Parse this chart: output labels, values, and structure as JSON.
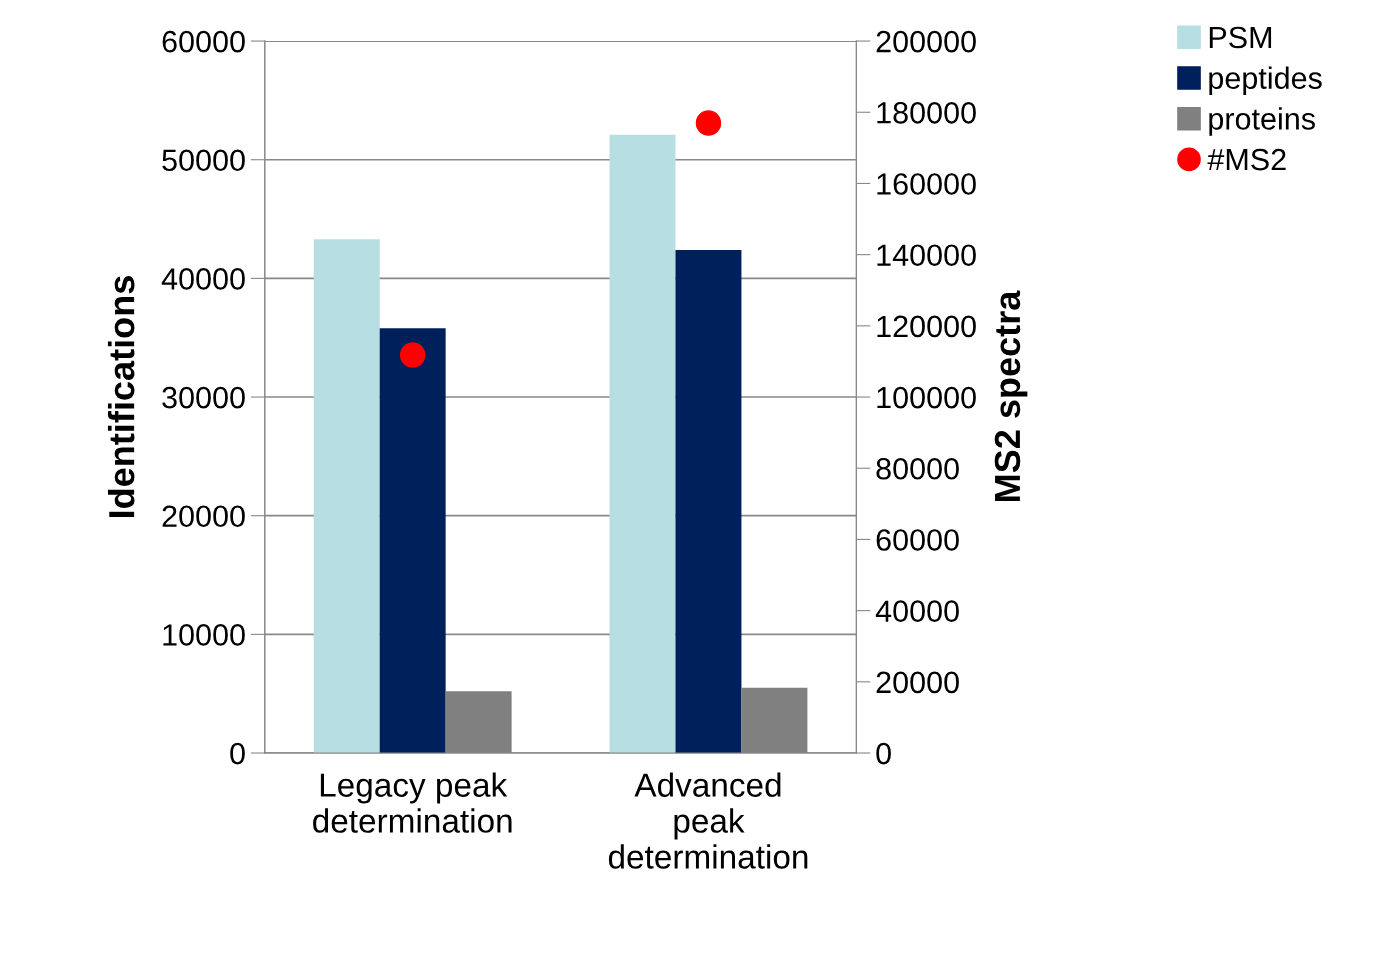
{
  "chart_data": {
    "type": "bar",
    "ylabel": "Identifications",
    "y2label": "MS2 spectra",
    "categories": [
      "Legacy peak\ndetermination",
      "Advanced\npeak\ndetermination"
    ],
    "series": [
      {
        "name": "PSM",
        "color": "#b7dfe3",
        "values": [
          43300,
          52100
        ]
      },
      {
        "name": "peptides",
        "color": "#00205b",
        "values": [
          35800,
          42400
        ]
      },
      {
        "name": "proteins",
        "color": "#808080",
        "values": [
          5200,
          5500
        ]
      },
      {
        "name": "#MS2",
        "type": "scatter",
        "axis": "y2",
        "color": "#ff0000",
        "marker": "circle",
        "values": [
          111800,
          177000
        ]
      }
    ],
    "ylim": [
      0,
      60000
    ],
    "yticks": [
      0,
      10000,
      20000,
      30000,
      40000,
      50000,
      60000
    ],
    "y2lim": [
      0,
      200000
    ],
    "y2ticks": [
      0,
      20000,
      40000,
      60000,
      80000,
      100000,
      120000,
      140000,
      160000,
      180000,
      200000
    ],
    "grid": "y",
    "legend": "top right"
  }
}
